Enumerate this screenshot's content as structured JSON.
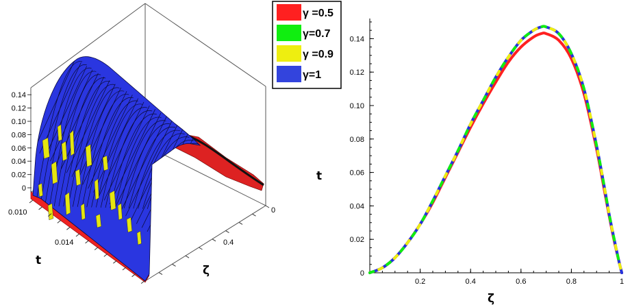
{
  "legend": [
    {
      "label": "γ =0.5",
      "color": "#ff2020"
    },
    {
      "label": "γ=0.7",
      "color": "#10ee10"
    },
    {
      "label": "γ =0.9",
      "color": "#eeee10"
    },
    {
      "label": "γ=1",
      "color": "#3344dd"
    }
  ],
  "chart_data": [
    {
      "type": "surface",
      "axes": {
        "vertical": {
          "label": "",
          "ticks": [
            "0",
            "0.02",
            "0.04",
            "0.06",
            "0.08",
            "0.10",
            "0.12",
            "0.14"
          ]
        },
        "t": {
          "label": "t",
          "ticks": [
            "0.010",
            "0.014"
          ]
        },
        "zeta": {
          "label": "ζ",
          "ticks": [
            "0",
            "0.4"
          ]
        }
      },
      "series_names": [
        "γ =0.5",
        "γ=0.7",
        "γ =0.9",
        "γ=1"
      ],
      "grid": false
    },
    {
      "type": "line",
      "xlabel": "ζ",
      "ylabel": "t",
      "xlim": [
        0,
        1
      ],
      "ylim": [
        0,
        0.15
      ],
      "xticks": [
        "0.2",
        "0.4",
        "0.6",
        "0.8",
        "1"
      ],
      "yticks": [
        "0",
        "0.02",
        "0.04",
        "0.06",
        "0.08",
        "0.10",
        "0.12",
        "0.14"
      ],
      "x": [
        0,
        0.05,
        0.1,
        0.15,
        0.2,
        0.25,
        0.3,
        0.35,
        0.4,
        0.45,
        0.5,
        0.55,
        0.6,
        0.65,
        0.68,
        0.7,
        0.75,
        0.8,
        0.85,
        0.9,
        0.93,
        0.95,
        0.97,
        0.99,
        1
      ],
      "series": [
        {
          "name": "γ =0.5",
          "color": "#ff2020",
          "style": "solid",
          "values": [
            0,
            0.003,
            0.009,
            0.018,
            0.029,
            0.042,
            0.057,
            0.072,
            0.087,
            0.101,
            0.114,
            0.126,
            0.135,
            0.141,
            0.143,
            0.143,
            0.139,
            0.128,
            0.107,
            0.074,
            0.05,
            0.034,
            0.019,
            0.006,
            0.0
          ]
        },
        {
          "name": "γ=0.7",
          "color": "#10ee10",
          "style": "dashed",
          "values": [
            0,
            0.003,
            0.009,
            0.018,
            0.029,
            0.043,
            0.058,
            0.073,
            0.089,
            0.103,
            0.117,
            0.129,
            0.139,
            0.145,
            0.147,
            0.147,
            0.143,
            0.131,
            0.11,
            0.076,
            0.052,
            0.035,
            0.02,
            0.006,
            0.0
          ]
        },
        {
          "name": "γ =0.9",
          "color": "#eeee10",
          "style": "dashed",
          "values": [
            0,
            0.003,
            0.009,
            0.018,
            0.029,
            0.043,
            0.058,
            0.073,
            0.089,
            0.103,
            0.117,
            0.129,
            0.139,
            0.145,
            0.147,
            0.147,
            0.143,
            0.131,
            0.11,
            0.076,
            0.052,
            0.035,
            0.02,
            0.006,
            0.0
          ]
        },
        {
          "name": "γ=1",
          "color": "#2233dd",
          "style": "solid",
          "values": [
            0,
            0.003,
            0.009,
            0.018,
            0.029,
            0.043,
            0.058,
            0.073,
            0.089,
            0.103,
            0.117,
            0.129,
            0.139,
            0.145,
            0.147,
            0.147,
            0.143,
            0.131,
            0.11,
            0.076,
            0.052,
            0.035,
            0.02,
            0.006,
            0.0
          ]
        }
      ]
    }
  ]
}
